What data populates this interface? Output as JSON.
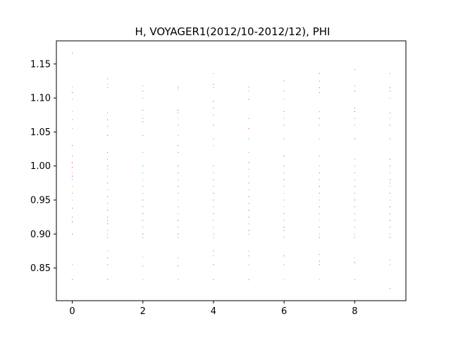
{
  "chart_data": {
    "type": "scatter",
    "title": "H, VOYAGER1(2012/10-2012/12), PHI",
    "xlabel": "",
    "ylabel": "",
    "xlim": [
      -0.45,
      9.45
    ],
    "ylim": [
      0.802,
      1.184
    ],
    "x_ticks": [
      0,
      2,
      4,
      6,
      8
    ],
    "x_tick_labels": [
      "0",
      "2",
      "4",
      "6",
      "8"
    ],
    "y_ticks": [
      0.85,
      0.9,
      0.95,
      1.0,
      1.05,
      1.1,
      1.15
    ],
    "y_tick_labels": [
      "0.85",
      "0.90",
      "0.95",
      "1.00",
      "1.05",
      "1.10",
      "1.15"
    ],
    "grid": false,
    "legend": "none",
    "marker_colors": [
      "#1f77b4",
      "#ff7f0e",
      "#2ca02c",
      "#d62728",
      "#9467bd",
      "#8c564b",
      "#e377c2",
      "#7f7f7f",
      "#bcbd22",
      "#17becf"
    ],
    "series": [
      {
        "x": 0,
        "y": [
          0.833,
          0.855,
          0.9,
          0.918,
          0.925,
          0.938,
          0.95,
          0.96,
          0.97,
          0.98,
          0.985,
          0.99,
          0.998,
          1.005,
          1.015,
          1.03,
          1.055,
          1.068,
          1.08,
          1.098,
          1.108,
          1.116,
          1.166
        ]
      },
      {
        "x": 1,
        "y": [
          0.833,
          0.855,
          0.865,
          0.875,
          0.895,
          0.9,
          0.905,
          0.915,
          0.92,
          0.925,
          0.935,
          0.945,
          0.955,
          0.965,
          0.975,
          0.985,
          0.995,
          1.0,
          1.01,
          1.02,
          1.045,
          1.058,
          1.068,
          1.078,
          1.115,
          1.12,
          1.128
        ]
      },
      {
        "x": 2,
        "y": [
          0.833,
          0.853,
          0.866,
          0.895,
          0.9,
          0.91,
          0.92,
          0.93,
          0.94,
          0.95,
          0.96,
          0.97,
          0.98,
          0.99,
          1.0,
          1.02,
          1.045,
          1.065,
          1.07,
          1.082,
          1.1,
          1.11,
          1.118
        ]
      },
      {
        "x": 3,
        "y": [
          0.833,
          0.853,
          0.865,
          0.895,
          0.9,
          0.91,
          0.92,
          0.93,
          0.94,
          0.95,
          0.96,
          0.97,
          0.98,
          0.99,
          1.0,
          1.02,
          1.03,
          1.045,
          1.06,
          1.07,
          1.078,
          1.082,
          1.113,
          1.116
        ]
      },
      {
        "x": 4,
        "y": [
          0.833,
          0.855,
          0.868,
          0.875,
          0.895,
          0.9,
          0.91,
          0.92,
          0.93,
          0.94,
          0.95,
          0.96,
          0.97,
          0.98,
          0.99,
          1.0,
          1.03,
          1.04,
          1.06,
          1.075,
          1.085,
          1.095,
          1.115,
          1.12,
          1.136
        ]
      },
      {
        "x": 5,
        "y": [
          0.833,
          0.855,
          0.868,
          0.875,
          0.9,
          0.905,
          0.915,
          0.925,
          0.935,
          0.945,
          0.955,
          0.965,
          0.975,
          0.985,
          0.995,
          1.005,
          1.02,
          1.04,
          1.055,
          1.07,
          1.098,
          1.11,
          1.116
        ]
      },
      {
        "x": 6,
        "y": [
          0.833,
          0.855,
          0.868,
          0.895,
          0.905,
          0.91,
          0.92,
          0.93,
          0.94,
          0.95,
          0.96,
          0.97,
          0.98,
          0.99,
          1.0,
          1.015,
          1.04,
          1.06,
          1.07,
          1.08,
          1.098,
          1.11,
          1.125
        ]
      },
      {
        "x": 7,
        "y": [
          0.833,
          0.855,
          0.86,
          0.87,
          0.895,
          0.9,
          0.91,
          0.92,
          0.93,
          0.94,
          0.95,
          0.96,
          0.97,
          0.98,
          0.99,
          1.0,
          1.015,
          1.04,
          1.06,
          1.07,
          1.08,
          1.108,
          1.115,
          1.125,
          1.136
        ]
      },
      {
        "x": 8,
        "y": [
          0.833,
          0.858,
          0.865,
          0.895,
          0.9,
          0.91,
          0.92,
          0.93,
          0.94,
          0.95,
          0.96,
          0.97,
          0.98,
          0.99,
          1.0,
          1.01,
          1.04,
          1.06,
          1.07,
          1.08,
          1.085,
          1.11,
          1.118,
          1.142
        ]
      },
      {
        "x": 9,
        "y": [
          0.82,
          0.855,
          0.862,
          0.895,
          0.9,
          0.91,
          0.92,
          0.93,
          0.94,
          0.95,
          0.96,
          0.97,
          0.975,
          0.98,
          0.99,
          1.0,
          1.01,
          1.04,
          1.06,
          1.07,
          1.078,
          1.1,
          1.11,
          1.115,
          1.136
        ]
      }
    ]
  }
}
